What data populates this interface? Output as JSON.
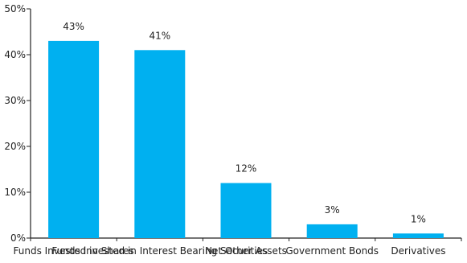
{
  "chart_data": {
    "type": "bar",
    "title": "",
    "xlabel": "",
    "ylabel": "",
    "categories": [
      "Funds Invested in Shares",
      "Funds Invested in Interest Bearing Securities",
      "Net Other Assets",
      "Government Bonds",
      "Derivatives"
    ],
    "values": [
      43,
      41,
      12,
      3,
      1
    ],
    "data_labels": [
      "43%",
      "41%",
      "12%",
      "3%",
      "1%"
    ],
    "ylim": [
      0,
      50
    ],
    "yticks": [
      0,
      10,
      20,
      30,
      40,
      50
    ],
    "ytick_labels": [
      "0%",
      "10%",
      "20%",
      "30%",
      "40%",
      "50%"
    ],
    "bar_color": "#00B0F0",
    "grid": false,
    "legend": "none"
  }
}
